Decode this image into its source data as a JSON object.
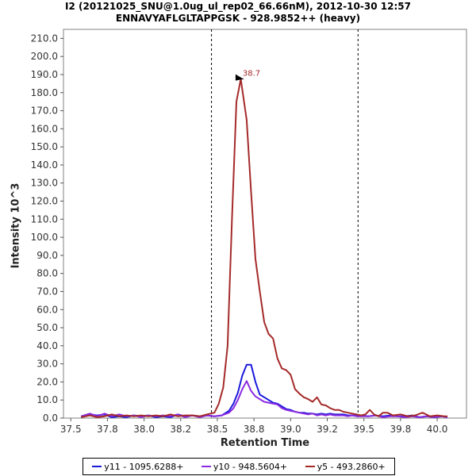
{
  "chart_data": {
    "type": "line",
    "title": "I2 (20121025_SNU@1.0ug_ul_rep02_66.66nM), 2012-10-30 12:57",
    "subtitle": "ENNAVYAFLGLTAPPGSK - 928.9852++ (heavy)",
    "xlabel": "Retention Time",
    "ylabel": "Intensity 10^3",
    "xlim": [
      37.45,
      40.2
    ],
    "ylim": [
      0,
      215
    ],
    "x_ticks": [
      "37.5",
      "37.8",
      "38.0",
      "38.2",
      "38.5",
      "38.8",
      "39.0",
      "39.2",
      "39.5",
      "39.8",
      "40.0"
    ],
    "x_tick_values": [
      37.5,
      37.75,
      38.0,
      38.25,
      38.5,
      38.75,
      39.0,
      39.25,
      39.5,
      39.75,
      40.0
    ],
    "y_ticks": [
      "0.0",
      "10.0",
      "20.0",
      "30.0",
      "40.0",
      "50.0",
      "60.0",
      "70.0",
      "80.0",
      "90.0",
      "100.0",
      "110.0",
      "120.0",
      "130.0",
      "140.0",
      "150.0",
      "160.0",
      "170.0",
      "180.0",
      "190.0",
      "200.0",
      "210.0"
    ],
    "y_tick_values": [
      0,
      10,
      20,
      30,
      40,
      50,
      60,
      70,
      80,
      90,
      100,
      110,
      120,
      130,
      140,
      150,
      160,
      170,
      180,
      190,
      200,
      210
    ],
    "boundaries": [
      38.46,
      39.46
    ],
    "peak_label": {
      "text": "38.7",
      "x": 38.7,
      "y": 187.5
    },
    "series": [
      {
        "name": "y11 - 1095.6288+",
        "color": "#1a1adb",
        "x": [
          37.57,
          37.63,
          37.68,
          37.73,
          37.78,
          37.83,
          37.88,
          37.93,
          37.98,
          38.03,
          38.08,
          38.13,
          38.18,
          38.23,
          38.28,
          38.33,
          38.38,
          38.43,
          38.48,
          38.53,
          38.58,
          38.61,
          38.64,
          38.67,
          38.7,
          38.73,
          38.76,
          38.79,
          38.82,
          38.85,
          38.88,
          38.91,
          38.94,
          38.97,
          39.0,
          39.03,
          39.06,
          39.09,
          39.12,
          39.15,
          39.18,
          39.21,
          39.24,
          39.27,
          39.3,
          39.33,
          39.36,
          39.39,
          39.42,
          39.45,
          39.48,
          39.53,
          39.58,
          39.63,
          39.68,
          39.73,
          39.78,
          39.83,
          39.88,
          39.93,
          39.98,
          40.03,
          40.07
        ],
        "y": [
          0.5,
          2.0,
          1.5,
          2.0,
          0.5,
          1.0,
          0.5,
          1.5,
          1.0,
          1.5,
          0.5,
          1.0,
          0.5,
          2.0,
          1.0,
          1.5,
          1.0,
          1.5,
          1.0,
          1.5,
          4.0,
          8.0,
          14.0,
          23.5,
          29.5,
          29.5,
          20.0,
          13.0,
          11.5,
          10.0,
          8.5,
          8.0,
          6.5,
          5.0,
          4.5,
          3.5,
          3.0,
          3.0,
          2.5,
          2.5,
          2.0,
          2.5,
          2.0,
          2.5,
          2.0,
          2.0,
          2.0,
          1.5,
          1.5,
          1.5,
          1.5,
          1.0,
          1.5,
          1.0,
          1.5,
          1.0,
          1.0,
          1.5,
          0.5,
          1.0,
          0.5,
          1.0,
          0.5
        ]
      },
      {
        "name": "y10 - 948.5604+",
        "color": "#8a2be2",
        "x": [
          37.57,
          37.63,
          37.68,
          37.73,
          37.78,
          37.83,
          37.88,
          37.93,
          37.98,
          38.03,
          38.08,
          38.13,
          38.18,
          38.23,
          38.28,
          38.33,
          38.38,
          38.43,
          38.48,
          38.53,
          38.58,
          38.61,
          38.64,
          38.67,
          38.7,
          38.73,
          38.76,
          38.79,
          38.82,
          38.85,
          38.88,
          38.91,
          38.94,
          38.97,
          39.0,
          39.03,
          39.06,
          39.09,
          39.12,
          39.15,
          39.18,
          39.21,
          39.24,
          39.27,
          39.3,
          39.33,
          39.36,
          39.39,
          39.42,
          39.45,
          39.48,
          39.53,
          39.58,
          39.63,
          39.68,
          39.73,
          39.78,
          39.83,
          39.88,
          39.93,
          39.98,
          40.03,
          40.07
        ],
        "y": [
          1.0,
          2.5,
          1.0,
          2.5,
          1.0,
          2.0,
          1.0,
          1.5,
          0.5,
          1.5,
          1.0,
          1.5,
          1.0,
          2.0,
          0.5,
          1.5,
          0.5,
          1.5,
          1.0,
          1.5,
          3.0,
          5.5,
          10.0,
          16.0,
          20.5,
          15.0,
          12.0,
          10.5,
          9.0,
          8.5,
          8.0,
          7.5,
          5.5,
          4.5,
          4.0,
          3.5,
          3.0,
          2.5,
          2.0,
          2.5,
          1.5,
          2.0,
          1.5,
          2.0,
          1.5,
          1.5,
          1.5,
          1.0,
          1.5,
          1.0,
          1.0,
          1.0,
          1.5,
          0.5,
          1.0,
          1.0,
          0.5,
          1.0,
          0.5,
          1.0,
          0.5,
          1.0,
          0.5
        ]
      },
      {
        "name": "y5 - 493.2860+",
        "color": "#a52a2a",
        "x": [
          37.57,
          37.63,
          37.68,
          37.73,
          37.78,
          37.83,
          37.88,
          37.93,
          37.98,
          38.03,
          38.08,
          38.13,
          38.18,
          38.23,
          38.28,
          38.33,
          38.38,
          38.43,
          38.48,
          38.51,
          38.54,
          38.57,
          38.6,
          38.63,
          38.66,
          38.7,
          38.73,
          38.76,
          38.79,
          38.82,
          38.85,
          38.88,
          38.91,
          38.94,
          38.97,
          39.0,
          39.03,
          39.06,
          39.09,
          39.12,
          39.15,
          39.18,
          39.21,
          39.24,
          39.27,
          39.3,
          39.33,
          39.36,
          39.39,
          39.42,
          39.45,
          39.48,
          39.51,
          39.54,
          39.57,
          39.6,
          39.63,
          39.66,
          39.7,
          39.75,
          39.8,
          39.85,
          39.9,
          39.95,
          40.0,
          40.05,
          40.07
        ],
        "y": [
          0.5,
          1.5,
          0.5,
          1.0,
          2.0,
          1.0,
          1.5,
          1.0,
          1.5,
          1.0,
          1.5,
          1.0,
          2.0,
          1.0,
          1.5,
          1.5,
          1.0,
          2.0,
          3.0,
          8.0,
          17.0,
          40.0,
          110.0,
          175.0,
          187.5,
          165.0,
          125.0,
          88.0,
          70.0,
          53.0,
          46.5,
          44.0,
          33.0,
          27.5,
          26.5,
          24.0,
          16.0,
          13.5,
          11.5,
          10.5,
          9.0,
          11.5,
          7.5,
          7.0,
          5.5,
          4.5,
          4.5,
          3.5,
          3.0,
          2.5,
          2.0,
          1.5,
          2.0,
          4.5,
          2.0,
          1.0,
          3.0,
          3.0,
          1.5,
          2.0,
          1.0,
          1.5,
          3.0,
          1.0,
          1.5,
          1.0,
          1.0
        ]
      }
    ],
    "legend_position": "bottom-center"
  }
}
